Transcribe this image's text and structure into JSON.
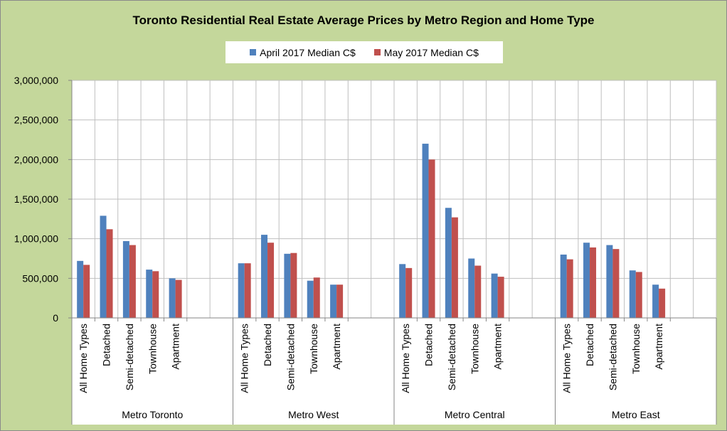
{
  "colors": {
    "background": "#c4d79b",
    "plot": "#ffffff",
    "grid": "#bfbfbf"
  },
  "chart_data": {
    "type": "bar",
    "title": "Toronto Residential Real Estate Average Prices by Metro Region and Home Type",
    "ylim": [
      0,
      3000000
    ],
    "yticks": [
      0,
      500000,
      1000000,
      1500000,
      2000000,
      2500000,
      3000000
    ],
    "ytick_labels": [
      "0",
      "500,000",
      "1,000,000",
      "1,500,000",
      "2,000,000",
      "2,500,000",
      "3,000,000"
    ],
    "grid": true,
    "legend_position": "top-center",
    "groups": [
      "Metro Toronto",
      "Metro West",
      "Metro Central",
      "Metro East"
    ],
    "categories": [
      "All Home Types",
      "Detached",
      "Semi-detached",
      "Townhouse",
      "Apartment"
    ],
    "series": [
      {
        "name": "April 2017 Median C$",
        "color": "#4f81bd",
        "values": [
          [
            720000,
            1290000,
            970000,
            610000,
            500000
          ],
          [
            690000,
            1050000,
            810000,
            470000,
            420000
          ],
          [
            680000,
            2200000,
            1390000,
            750000,
            560000
          ],
          [
            800000,
            950000,
            920000,
            600000,
            420000
          ]
        ]
      },
      {
        "name": "May 2017 Median C$",
        "color": "#c0504d",
        "values": [
          [
            670000,
            1120000,
            920000,
            590000,
            480000
          ],
          [
            690000,
            950000,
            820000,
            510000,
            420000
          ],
          [
            630000,
            2000000,
            1270000,
            660000,
            520000
          ],
          [
            740000,
            890000,
            870000,
            580000,
            370000
          ]
        ]
      }
    ]
  }
}
